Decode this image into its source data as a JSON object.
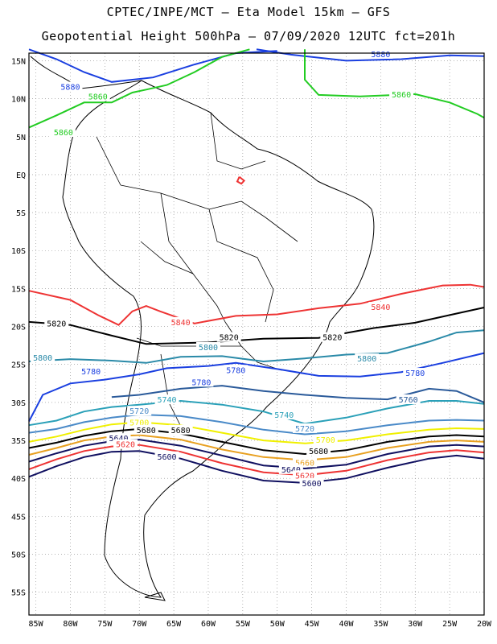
{
  "header": {
    "line1": "CPTEC/INPE/MCT –  Eta Model 15km – GFS",
    "line2": "Geopotential Height 500hPa – 07/09/2020 12UTC fct=201h"
  },
  "axes": {
    "lon_labels": [
      "85W",
      "80W",
      "75W",
      "70W",
      "65W",
      "60W",
      "55W",
      "50W",
      "45W",
      "40W",
      "35W",
      "30W",
      "25W",
      "20W"
    ],
    "lat_labels": [
      "15N",
      "10N",
      "5N",
      "EQ",
      "5S",
      "10S",
      "15S",
      "20S",
      "25S",
      "30S",
      "35S",
      "40S",
      "45S",
      "50S",
      "55S"
    ],
    "lon_range": [
      -86,
      -20
    ],
    "lat_range": [
      16,
      -58
    ]
  },
  "colors": {
    "c5880": "#1a3fe0",
    "c5860": "#22cc22",
    "c5840": "#ee3333",
    "c5820": "#000000",
    "c5800": "#2a8aa8",
    "c5780": "#1a3fe0",
    "c5760": "#2a5a9a",
    "c5740": "#2aa0b8",
    "c5720": "#4a8ac8",
    "c5700": "#f0f000",
    "c5660": "#e8a020",
    "c5640": "#101060",
    "c5620": "#ee3333",
    "c5600": "#101060"
  },
  "contours": [
    {
      "name": "5880-north",
      "label": "5880",
      "color": "c5880",
      "labels_at": [
        [
          -80,
          11.5
        ],
        [
          -35,
          15.8
        ]
      ]
    },
    {
      "name": "5860-north",
      "label": "5860",
      "color": "c5860",
      "labels_at": [
        [
          -76,
          10.2
        ],
        [
          -81,
          5.5
        ],
        [
          -32,
          10.5
        ]
      ]
    },
    {
      "name": "5840-central",
      "label": "5840",
      "color": "c5840",
      "labels_at": [
        [
          -64,
          -19.5
        ],
        [
          -35,
          -17.5
        ]
      ]
    },
    {
      "name": "5820",
      "label": "5820",
      "color": "c5820",
      "labels_at": [
        [
          -82,
          -19.7
        ],
        [
          -57,
          -21.5
        ],
        [
          -42,
          -21.5
        ]
      ]
    },
    {
      "name": "5800",
      "label": "5800",
      "color": "c5800",
      "labels_at": [
        [
          -84,
          -24.2
        ],
        [
          -60,
          -22.8
        ],
        [
          -37,
          -24.3
        ]
      ]
    },
    {
      "name": "5780",
      "label": "5780",
      "color": "c5780",
      "labels_at": [
        [
          -77,
          -26
        ],
        [
          -56,
          -25.8
        ],
        [
          -61,
          -27.4
        ],
        [
          -30,
          -26.2
        ]
      ]
    },
    {
      "name": "5760",
      "label": "5760",
      "color": "c5760",
      "labels_at": [
        [
          -31,
          -29.7
        ]
      ]
    },
    {
      "name": "5740",
      "label": "5740",
      "color": "c5740",
      "labels_at": [
        [
          -66,
          -29.7
        ],
        [
          -49,
          -31.7
        ]
      ]
    },
    {
      "name": "5720",
      "label": "5720",
      "color": "c5720",
      "labels_at": [
        [
          -70,
          -31.2
        ],
        [
          -46,
          -33.5
        ]
      ]
    },
    {
      "name": "5700",
      "label": "5700",
      "color": "c5700",
      "labels_at": [
        [
          -70,
          -32.7
        ],
        [
          -43,
          -35
        ]
      ]
    },
    {
      "name": "5680",
      "label": "5680",
      "color": "c5680",
      "labels_at": [
        [
          -69,
          -33.7
        ],
        [
          -64,
          -33.7
        ],
        [
          -44,
          -36.5
        ]
      ]
    },
    {
      "name": "5660",
      "label": "5660",
      "color": "c5660",
      "labels_at": [
        [
          -46,
          -38
        ]
      ]
    },
    {
      "name": "5640",
      "label": "5640",
      "color": "c5640",
      "labels_at": [
        [
          -73,
          -34.8
        ],
        [
          -48,
          -38.9
        ]
      ]
    },
    {
      "name": "5620",
      "label": "5620",
      "color": "c5620",
      "labels_at": [
        [
          -72,
          -35.6
        ],
        [
          -46,
          -39.7
        ]
      ]
    },
    {
      "name": "5600",
      "label": "5600",
      "color": "c5600",
      "labels_at": [
        [
          -66,
          -37.2
        ],
        [
          -45,
          -40.7
        ]
      ]
    }
  ]
}
